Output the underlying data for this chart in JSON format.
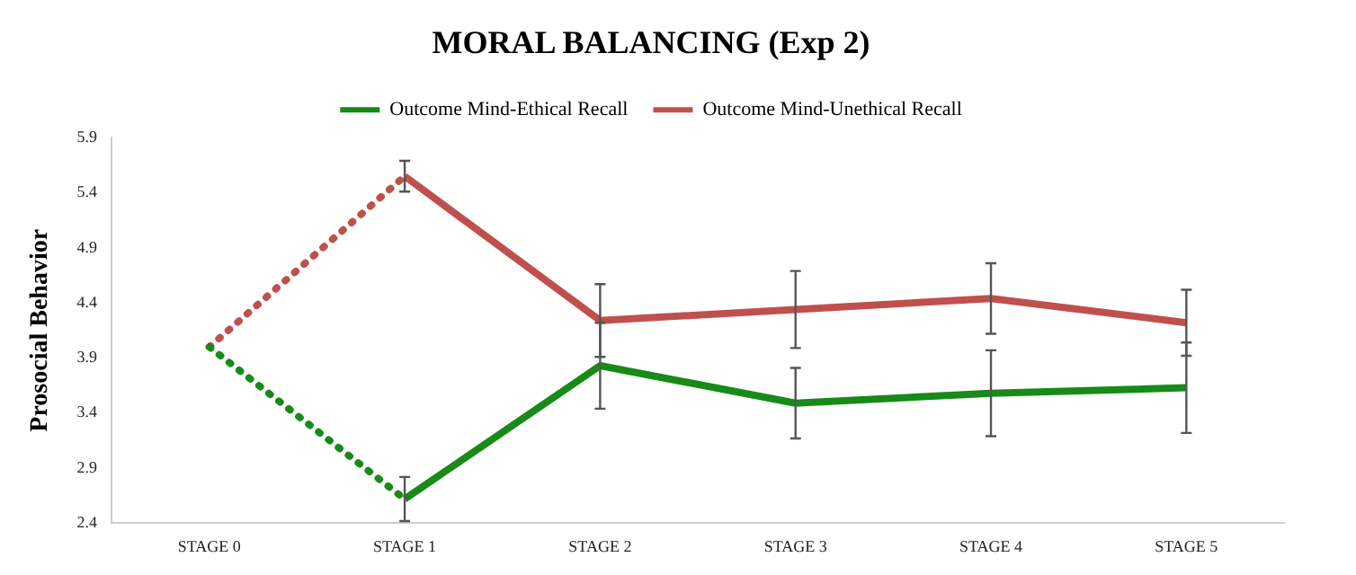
{
  "chart_data": {
    "type": "line",
    "title": "MORAL BALANCING (Exp 2)",
    "ylabel": "Prosocial Behavior",
    "categories": [
      "STAGE 0",
      "STAGE 1",
      "STAGE 2",
      "STAGE 3",
      "STAGE 4",
      "STAGE 5"
    ],
    "series": [
      {
        "name": "Outcome Mind-Ethical Recall",
        "color": "#178a17",
        "values": [
          null,
          2.62,
          3.83,
          3.49,
          3.58,
          3.63
        ],
        "errors": [
          null,
          0.2,
          0.39,
          0.32,
          0.39,
          0.41
        ]
      },
      {
        "name": "Outcome Mind-Unethical Recall",
        "color": "#c0504d",
        "values": [
          null,
          5.55,
          4.24,
          4.34,
          4.44,
          4.22
        ],
        "errors": [
          null,
          0.14,
          0.33,
          0.35,
          0.32,
          0.3
        ]
      },
      {
        "color": "#178a17",
        "values": [
          4.0,
          2.62,
          null,
          null,
          null,
          null
        ],
        "line_style": "dotted"
      },
      {
        "color": "#c0504d",
        "values": [
          4.0,
          5.55,
          null,
          null,
          null,
          null
        ],
        "line_style": "dotted"
      }
    ],
    "ylim": [
      2.4,
      5.9
    ],
    "yticks": [
      2.4,
      2.9,
      3.4,
      3.9,
      4.4,
      4.9,
      5.4,
      5.9
    ],
    "grid": false,
    "legend": "top",
    "marker": "none",
    "line_style": "solid"
  }
}
